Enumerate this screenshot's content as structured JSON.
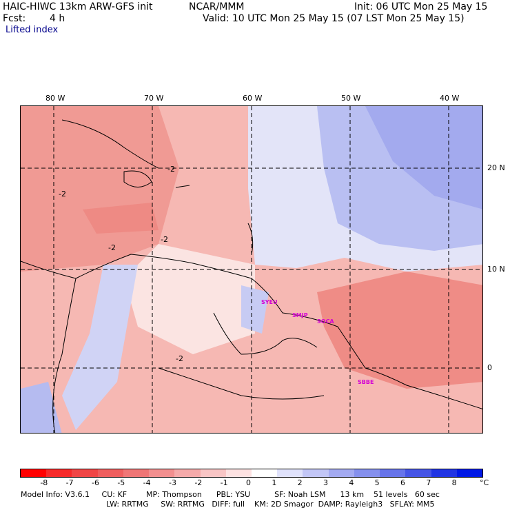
{
  "header": {
    "model": "HAIC-HIWC 13km ARW-GFS init",
    "org": "NCAR/MMM",
    "init": "Init: 06 UTC Mon 25 May 15",
    "fcst_label": "Fcst:",
    "fcst_value": "4 h",
    "valid": "Valid: 10 UTC Mon 25 May 15 (07 LST Mon 25 May 15)",
    "field": "Lifted index"
  },
  "map": {
    "lon_labels": [
      "80 W",
      "70 W",
      "60 W",
      "50 W",
      "40 W"
    ],
    "lat_labels": [
      "20 N",
      "10 N",
      "0"
    ],
    "stations": [
      "SYEU",
      "SMJP",
      "SOCA",
      "SBBE"
    ],
    "contour_labels": [
      "-2",
      "-2",
      "-2",
      "-2",
      "-2"
    ],
    "colors": {
      "warm_bg": "#f6b8b3",
      "warm_strong": "#f08a84",
      "cool": "#c9cdf4",
      "cool_strong": "#8f98ec",
      "neutral": "#fbe6e4"
    }
  },
  "colorbar": {
    "ticks": [
      "-8",
      "-7",
      "-6",
      "-5",
      "-4",
      "-3",
      "-2",
      "-1",
      "0",
      "1",
      "2",
      "3",
      "4",
      "5",
      "6",
      "7",
      "8"
    ],
    "unit": "°C",
    "colors": [
      "#ff0000",
      "#f62a2a",
      "#f04646",
      "#ee5e5e",
      "#ef7676",
      "#f28f8f",
      "#f5aaaa",
      "#f8c5c5",
      "#fde2e2",
      "#ffffff",
      "#e0e2fb",
      "#c2c6f6",
      "#a3aaf1",
      "#8590ed",
      "#6774ea",
      "#4655e6",
      "#2134e3",
      "#0018e6"
    ]
  },
  "footer": {
    "line1": "Model Info: V3.6.1     CU: KF        MP: Thompson      PBL: YSU          SF: Noah LSM      13 km    51 levels   60 sec",
    "line2": "LW: RRTMG     SW: RRTMG   DIFF: full    KM: 2D Smagor  DAMP: Rayleigh3   SFLAY: MM5"
  }
}
